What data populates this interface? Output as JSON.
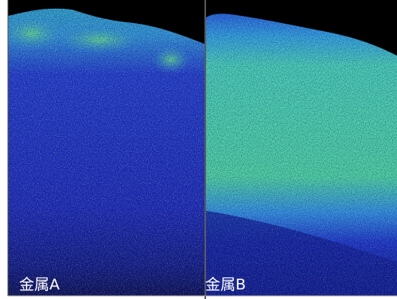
{
  "panels": [
    {
      "label": "金属A"
    },
    {
      "label": "金属B"
    }
  ]
}
